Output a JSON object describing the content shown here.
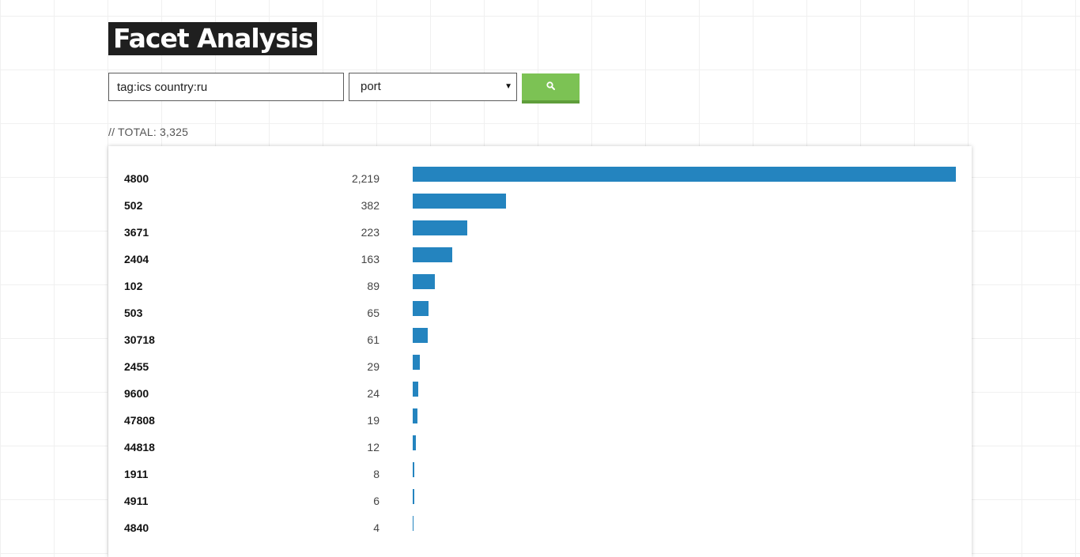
{
  "title": "Facet Analysis",
  "search": {
    "value": "tag:ics country:ru"
  },
  "facet": {
    "selected": "port"
  },
  "button": {
    "icon": "search-icon"
  },
  "total_label": "// TOTAL: 3,325",
  "colors": {
    "bar": "#2484bf",
    "button": "#7cc254",
    "title_bg": "#1f1f1f"
  },
  "chart_data": {
    "type": "bar",
    "categories": [
      "4800",
      "502",
      "3671",
      "2404",
      "102",
      "503",
      "30718",
      "2455",
      "9600",
      "47808",
      "44818",
      "1911",
      "4911",
      "4840"
    ],
    "values": [
      2219,
      382,
      223,
      163,
      89,
      65,
      61,
      29,
      24,
      19,
      12,
      8,
      6,
      4
    ],
    "value_labels": [
      "2,219",
      "382",
      "223",
      "163",
      "89",
      "65",
      "61",
      "29",
      "24",
      "19",
      "12",
      "8",
      "6",
      "4"
    ],
    "title": "",
    "xlabel": "",
    "ylabel": ""
  }
}
